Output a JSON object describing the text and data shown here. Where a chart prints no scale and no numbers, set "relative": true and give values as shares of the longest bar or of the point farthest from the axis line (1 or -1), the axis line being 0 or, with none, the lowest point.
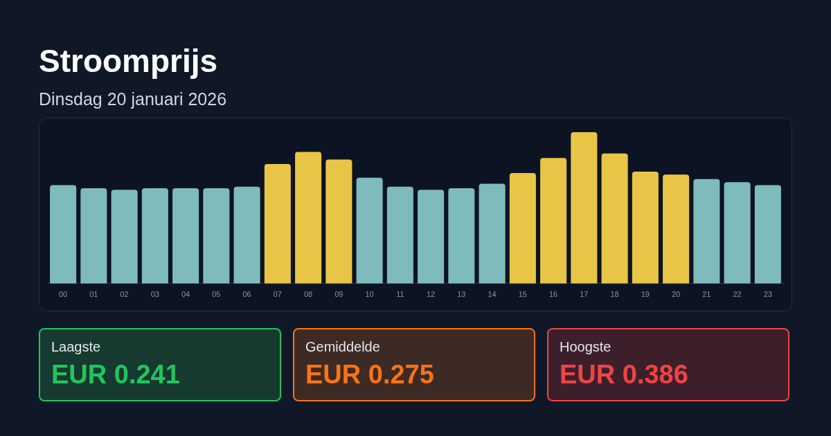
{
  "chart_data": {
    "type": "bar",
    "title": "Stroomprijs",
    "subtitle": "Dinsdag 20 januari 2026",
    "categories": [
      "00",
      "01",
      "02",
      "03",
      "04",
      "05",
      "06",
      "07",
      "08",
      "09",
      "10",
      "11",
      "12",
      "13",
      "14",
      "15",
      "16",
      "17",
      "18",
      "19",
      "20",
      "21",
      "22",
      "23"
    ],
    "values": [
      0.65,
      0.63,
      0.62,
      0.63,
      0.63,
      0.63,
      0.64,
      0.79,
      0.87,
      0.82,
      0.7,
      0.64,
      0.62,
      0.63,
      0.66,
      0.73,
      0.83,
      1,
      0.86,
      0.74,
      0.72,
      0.69,
      0.67,
      0.65
    ],
    "colors": [
      "#7fbbba",
      "#7fbbba",
      "#7fbbba",
      "#7fbbba",
      "#7fbbba",
      "#7fbbba",
      "#7fbbba",
      "#e8c547",
      "#e8c547",
      "#e8c547",
      "#7fbbba",
      "#7fbbba",
      "#7fbbba",
      "#7fbbba",
      "#7fbbba",
      "#e8c547",
      "#e8c547",
      "#e8c547",
      "#e8c547",
      "#e8c547",
      "#e8c547",
      "#7fbbba",
      "#7fbbba",
      "#7fbbba"
    ],
    "relative": true,
    "legend": false,
    "annotations": [
      "Laagste",
      "EUR 0.241",
      "Gemiddelde",
      "EUR 0.275",
      "Hoogste",
      "EUR 0.386"
    ]
  }
}
